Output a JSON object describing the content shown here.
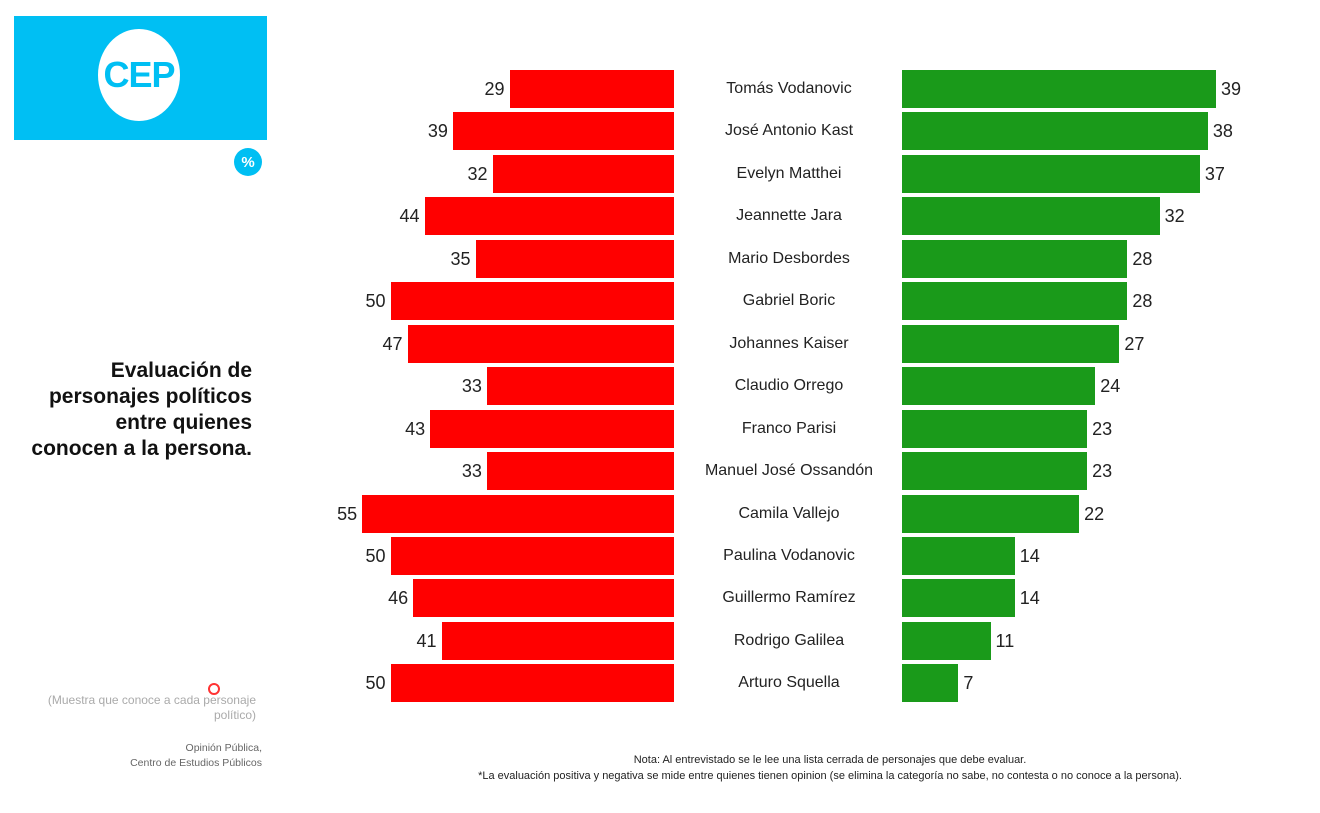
{
  "logo": {
    "text": "CEP",
    "unit": "%"
  },
  "title": "Evaluación de personajes políticos entre quienes conocen a la persona.",
  "sample": "(Muestra que conoce a cada personaje político)",
  "source": [
    "Opinión Pública,",
    "Centro de Estudios Públicos"
  ],
  "notes": [
    "Nota: Al entrevistado se le lee una lista cerrada de personajes que debe evaluar.",
    "*La evaluación positiva y negativa se mide entre quienes tienen opinion (se elimina la categoría no sabe, no contesta o no conoce a la persona)."
  ],
  "chart_data": {
    "type": "bar",
    "orientation": "horizontal-diverging",
    "categories": [
      "Tomás Vodanovic",
      "José Antonio Kast",
      "Evelyn Matthei",
      "Jeannette Jara",
      "Mario Desbordes",
      "Gabriel Boric",
      "Johannes Kaiser",
      "Claudio Orrego",
      "Franco Parisi",
      "Manuel José Ossandón",
      "Camila Vallejo",
      "Paulina Vodanovic",
      "Guillermo Ramírez",
      "Rodrigo Galilea",
      "Arturo Squella"
    ],
    "series": [
      {
        "name": "Negativa",
        "color": "#ff0000",
        "values": [
          29,
          39,
          32,
          44,
          35,
          50,
          47,
          33,
          43,
          33,
          55,
          50,
          46,
          41,
          50
        ]
      },
      {
        "name": "Positiva",
        "color": "#1a9a1a",
        "values": [
          39,
          38,
          37,
          32,
          28,
          28,
          27,
          24,
          23,
          23,
          22,
          14,
          14,
          11,
          7
        ]
      }
    ],
    "unit": "%"
  }
}
